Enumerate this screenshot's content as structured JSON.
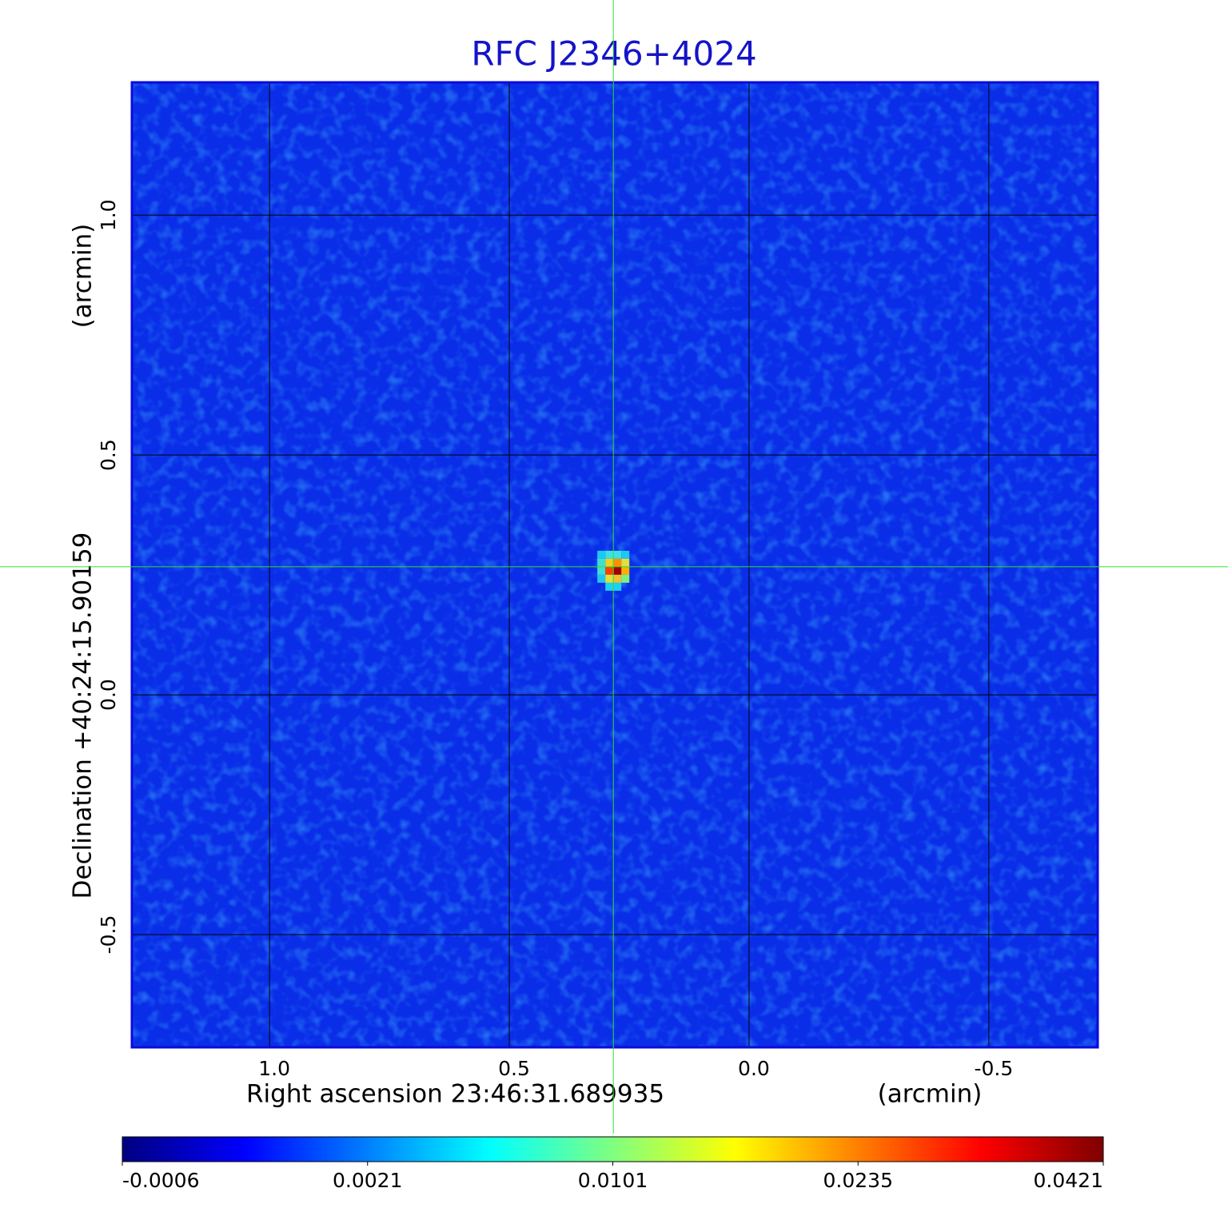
{
  "chart_data": {
    "type": "image",
    "title": "RFC J2346+4024",
    "x_label": "Right ascension  23:46:31.689935",
    "x_unit": "(arcmin)",
    "y_label": "Declination  +40:24:15.90159",
    "y_unit": "(arcmin)",
    "xlim": [
      1.287,
      -0.727
    ],
    "ylim": [
      -0.735,
      1.277
    ],
    "xticks": [
      {
        "value": 1,
        "label": "1.0"
      },
      0.5,
      {
        "value": 0,
        "label": "0.0"
      },
      -0.5
    ],
    "yticks": [
      {
        "value": 1,
        "label": "1.0"
      },
      0.5,
      {
        "value": 0,
        "label": "0.0"
      },
      -0.5
    ],
    "grid": true,
    "crosshair": {
      "x": 0.283,
      "y": 0.267
    },
    "colorbar": {
      "ticks": [
        -0.0006,
        0.0021,
        0.0101,
        0.0235,
        0.0421
      ],
      "colormap": [
        "#000080",
        "#0000ff",
        "#00ffff",
        "#ffff00",
        "#ff0000",
        "#800000"
      ]
    }
  }
}
